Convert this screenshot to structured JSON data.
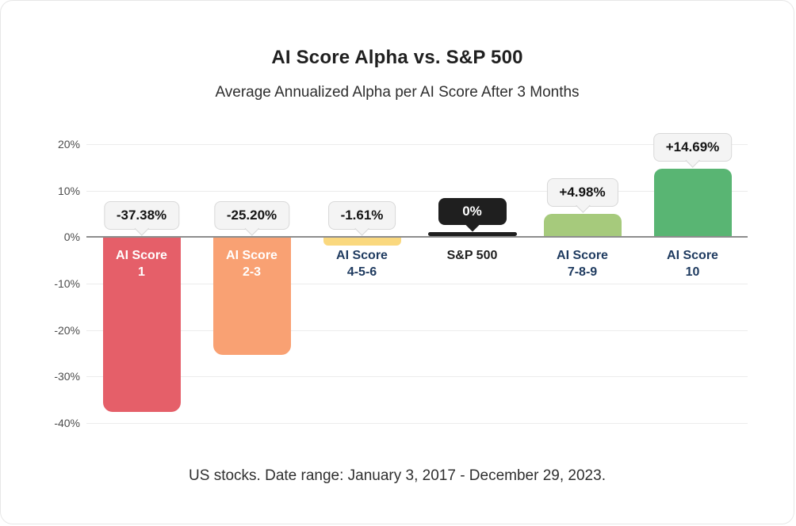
{
  "chart_data": {
    "type": "bar",
    "title": "AI Score Alpha vs. S&P 500",
    "subtitle": "Average Annualized Alpha per AI Score After 3 Months",
    "footnote": "US stocks. Date range: January 3, 2017 - December 29, 2023.",
    "ylim": [
      -40,
      20
    ],
    "grid": true,
    "legend": "none",
    "yticks": [
      {
        "value": 20,
        "label": "20%"
      },
      {
        "value": 10,
        "label": "10%"
      },
      {
        "value": 0,
        "label": "0%"
      },
      {
        "value": -10,
        "label": "-10%"
      },
      {
        "value": -20,
        "label": "-20%"
      },
      {
        "value": -30,
        "label": "-30%"
      },
      {
        "value": -40,
        "label": "-40%"
      }
    ],
    "categories": [
      "AI Score 1",
      "AI Score 2-3",
      "AI Score 4-5-6",
      "S&P 500",
      "AI Score 7-8-9",
      "AI Score 10"
    ],
    "bars": [
      {
        "id": "ai-score-1",
        "label_lines": [
          "AI Score",
          "1"
        ],
        "value": -37.38,
        "value_label": "-37.38%",
        "color": "#e55f69",
        "label_color": "#ffffff",
        "label_placement": "inside",
        "tooltip_style": "light",
        "benchmark": false
      },
      {
        "id": "ai-score-2-3",
        "label_lines": [
          "AI Score",
          "2-3"
        ],
        "value": -25.2,
        "value_label": "-25.20%",
        "color": "#f9a173",
        "label_color": "#ffffff",
        "label_placement": "inside",
        "tooltip_style": "light",
        "benchmark": false
      },
      {
        "id": "ai-score-4-5-6",
        "label_lines": [
          "AI Score",
          "4-5-6"
        ],
        "value": -1.61,
        "value_label": "-1.61%",
        "color": "#fad87e",
        "label_color": "#1e3a5f",
        "label_placement": "below",
        "tooltip_style": "light",
        "benchmark": false
      },
      {
        "id": "sp-500",
        "label_lines": [
          "S&P 500"
        ],
        "value": 0,
        "value_label": "0%",
        "color": "#1f1f1f",
        "label_color": "#1f1f1f",
        "label_placement": "below",
        "tooltip_style": "dark",
        "benchmark": true
      },
      {
        "id": "ai-score-7-8-9",
        "label_lines": [
          "AI Score",
          "7-8-9"
        ],
        "value": 4.98,
        "value_label": "+4.98%",
        "color": "#a6ca7c",
        "label_color": "#1e3a5f",
        "label_placement": "below",
        "tooltip_style": "light",
        "benchmark": false
      },
      {
        "id": "ai-score-10",
        "label_lines": [
          "AI Score",
          "10"
        ],
        "value": 14.69,
        "value_label": "+14.69%",
        "color": "#59b573",
        "label_color": "#1e3a5f",
        "label_placement": "below",
        "tooltip_style": "light",
        "benchmark": false
      }
    ],
    "colors": {
      "grid": "#ececec",
      "zero_line": "#8d8d8d",
      "axis_text": "#4c4c4c",
      "tooltip_light_bg": "#f4f4f4",
      "tooltip_light_border": "#d8d8d8",
      "tooltip_dark_bg": "#1f1f1f",
      "card_border": "#e7e7e7"
    }
  }
}
